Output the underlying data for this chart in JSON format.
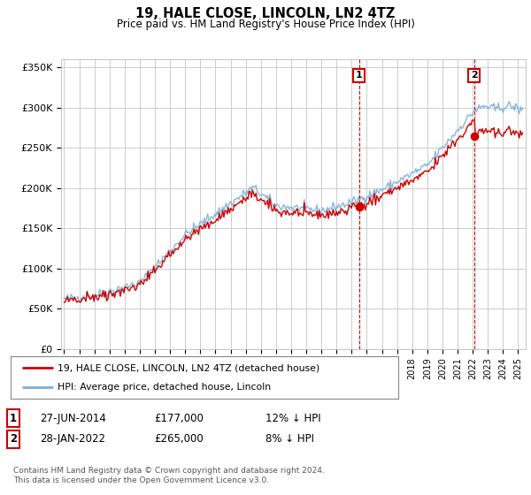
{
  "title": "19, HALE CLOSE, LINCOLN, LN2 4TZ",
  "subtitle": "Price paid vs. HM Land Registry's House Price Index (HPI)",
  "title_fontsize": 10.5,
  "subtitle_fontsize": 8.5,
  "background_color": "#ffffff",
  "plot_bg_color": "#ffffff",
  "grid_color": "#cccccc",
  "hpi_color": "#7ab0d8",
  "property_color": "#cc0000",
  "sale1_date": 2014.49,
  "sale1_price": 177000,
  "sale1_label": "27-JUN-2014",
  "sale1_price_label": "£177,000",
  "sale1_hpi_label": "12% ↓ HPI",
  "sale2_date": 2022.08,
  "sale2_price": 265000,
  "sale2_label": "28-JAN-2022",
  "sale2_price_label": "£265,000",
  "sale2_hpi_label": "8% ↓ HPI",
  "ylim": [
    0,
    360000
  ],
  "xlim_start": 1994.8,
  "xlim_end": 2025.5,
  "legend_line1": "19, HALE CLOSE, LINCOLN, LN2 4TZ (detached house)",
  "legend_line2": "HPI: Average price, detached house, Lincoln",
  "footnote1": "Contains HM Land Registry data © Crown copyright and database right 2024.",
  "footnote2": "This data is licensed under the Open Government Licence v3.0.",
  "yticks": [
    0,
    50000,
    100000,
    150000,
    200000,
    250000,
    300000,
    350000
  ],
  "ytick_labels": [
    "£0",
    "£50K",
    "£100K",
    "£150K",
    "£200K",
    "£250K",
    "£300K",
    "£350K"
  ]
}
